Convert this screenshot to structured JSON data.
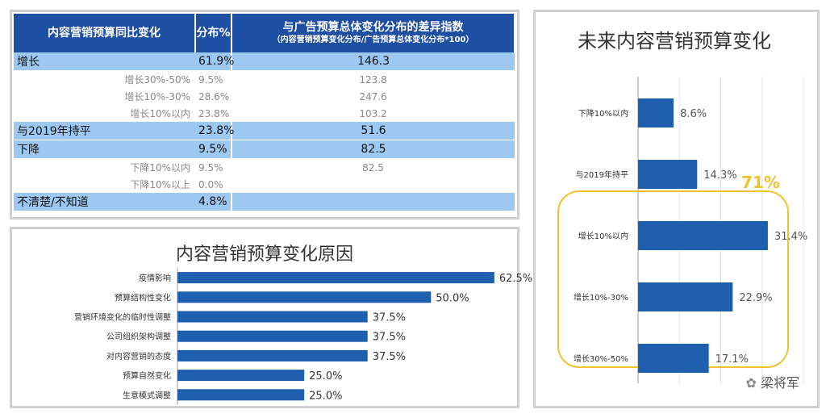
{
  "table": {
    "headers": [
      "内容营销预算同比变化",
      "分布%",
      "与广告预算总体变化分布的差异指数",
      "（内容营销预算变化分布/广告预算总体变化分布*100）"
    ],
    "rows": [
      {
        "label": "增长",
        "pct": "61.9%",
        "index": "146.3",
        "main": true
      },
      {
        "label": "增长30%-50%",
        "pct": "9.5%",
        "index": "123.8",
        "main": false
      },
      {
        "label": "增长10%-30%",
        "pct": "28.6%",
        "index": "247.6",
        "main": false
      },
      {
        "label": "增长10%以内",
        "pct": "23.8%",
        "index": "103.2",
        "main": false
      },
      {
        "label": "与2019年持平",
        "pct": "23.8%",
        "index": "51.6",
        "main": true
      },
      {
        "label": "下降",
        "pct": "9.5%",
        "index": "82.5",
        "main": true
      },
      {
        "label": "下降10%以内",
        "pct": "9.5%",
        "index": "82.5",
        "main": false
      },
      {
        "label": "下降10%以上",
        "pct": "0.0%",
        "index": "",
        "main": false
      },
      {
        "label": "不清楚/不知道",
        "pct": "4.8%",
        "index": "",
        "main": true
      }
    ]
  },
  "chart_data": [
    {
      "type": "bar",
      "orientation": "horizontal",
      "title": "内容营销预算变化原因",
      "categories": [
        "疫情影响",
        "预算结构性变化",
        "营销环境变化的临时性调整",
        "公司组织架构调整",
        "对内容营销的态度",
        "预算自然变化",
        "生意模式调整"
      ],
      "values": [
        62.5,
        50.0,
        37.5,
        37.5,
        37.5,
        25.0,
        25.0
      ],
      "value_labels": [
        "62.5%",
        "50.0%",
        "37.5%",
        "37.5%",
        "37.5%",
        "25.0%",
        "25.0%"
      ],
      "xlim": [
        0,
        70
      ],
      "grid": false,
      "color": "#1f5fb0"
    },
    {
      "type": "bar",
      "orientation": "horizontal",
      "title": "未来内容营销预算变化",
      "categories": [
        "下降10%以内",
        "与2019年持平",
        "增长10%以内",
        "增长10%-30%",
        "增长30%-50%"
      ],
      "values": [
        8.6,
        14.3,
        31.4,
        22.9,
        17.1
      ],
      "value_labels": [
        "8.6%",
        "14.3%",
        "31.4%",
        "22.9%",
        "17.1%"
      ],
      "xlim": [
        0,
        40
      ],
      "grid": true,
      "color": "#1f5fb0",
      "highlight_label": "71%",
      "highlight_color": "#f2c12e"
    }
  ],
  "watermark": "梁将军"
}
